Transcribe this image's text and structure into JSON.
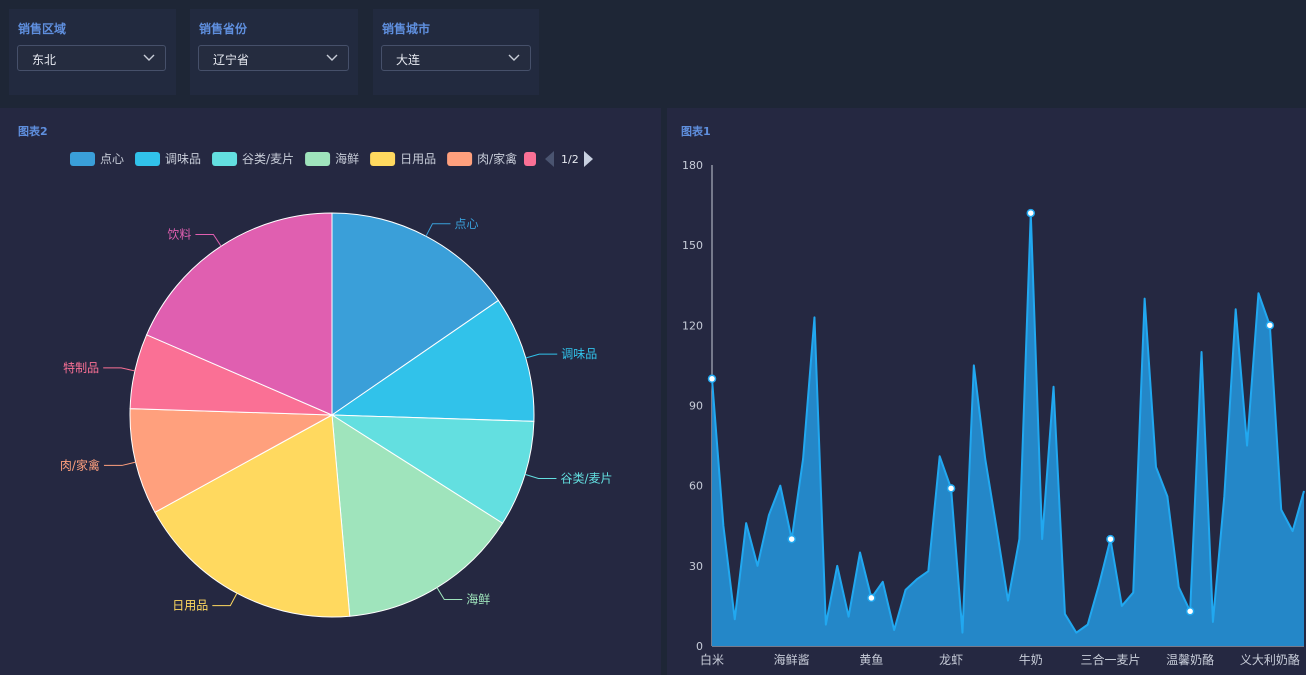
{
  "filters": {
    "region": {
      "label": "销售区域",
      "value": "东北"
    },
    "province": {
      "label": "销售省份",
      "value": "辽宁省"
    },
    "city": {
      "label": "销售城市",
      "value": "大连"
    }
  },
  "pie_panel": {
    "title": "图表2",
    "legend_page": "1/2",
    "legend_icon": "pagination-arrows"
  },
  "line_panel": {
    "title": "图表1"
  },
  "colors": {
    "点心": "#3a9fd9",
    "调味品": "#31c2ea",
    "谷类/麦片": "#63dfe0",
    "海鲜": "#9fe4bc",
    "日用品": "#ffd95f",
    "肉/家禽": "#ffa07d",
    "特制品": "#fa7095",
    "饮料": "#e05fb0",
    "area": "#2487c8",
    "line": "#21a8f0"
  },
  "chart_data": [
    {
      "type": "pie",
      "title": "图表2",
      "legend_visible": [
        "点心",
        "调味品",
        "谷类/麦片",
        "海鲜",
        "日用品",
        "肉/家禽"
      ],
      "categories": [
        "点心",
        "调味品",
        "谷类/麦片",
        "海鲜",
        "日用品",
        "肉/家禽",
        "特制品",
        "饮料"
      ],
      "values": [
        15.4,
        10.1,
        8.5,
        14.6,
        18.4,
        8.5,
        6.0,
        18.5
      ]
    },
    {
      "type": "area",
      "title": "图表1",
      "ylim": [
        0,
        180
      ],
      "yticks": [
        0,
        30,
        60,
        90,
        120,
        150,
        180
      ],
      "xtick_labels": [
        "白米",
        "海鲜酱",
        "黄鱼",
        "龙虾",
        "牛奶",
        "三合一麦片",
        "温馨奶酪",
        "义大利奶酪"
      ],
      "xtick_positions": [
        0,
        7,
        14,
        21,
        28,
        35,
        42,
        49
      ],
      "values": [
        100,
        45,
        10,
        46,
        30,
        49,
        60,
        40,
        70,
        123,
        8,
        30,
        11,
        35,
        18,
        24,
        6,
        21,
        25,
        28,
        71,
        59,
        5,
        105,
        70,
        44,
        17,
        40,
        162,
        40,
        97,
        12,
        5,
        8,
        23,
        40,
        15,
        20,
        130,
        67,
        56,
        22,
        13,
        110,
        9,
        56,
        126,
        75,
        132,
        120,
        51,
        43,
        58
      ],
      "markers": [
        0,
        7,
        14,
        21,
        28,
        35,
        42,
        49
      ]
    }
  ]
}
